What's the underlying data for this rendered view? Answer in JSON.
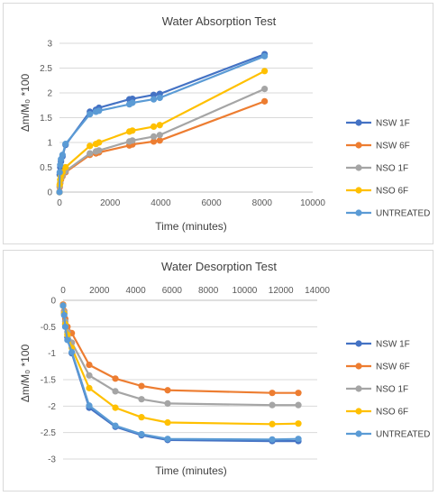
{
  "chart_data": [
    {
      "type": "line",
      "title": "Water Absorption Test",
      "xlabel": "Time (minutes)",
      "ylabel": "Δm/M₀ *100",
      "xlim": [
        0,
        10000
      ],
      "ylim": [
        0,
        3
      ],
      "xticks": [
        0,
        2000,
        4000,
        6000,
        8000,
        10000
      ],
      "yticks": [
        0,
        0.5,
        1,
        1.5,
        2,
        2.5,
        3
      ],
      "xtick_labels": [
        "0",
        "2000",
        "4000",
        "6000",
        "8000",
        "10000"
      ],
      "ytick_labels": [
        "0",
        "0.5",
        "1",
        "1.5",
        "2",
        "2.5",
        "3"
      ],
      "grid": "horizontal",
      "legend_position": "right",
      "series": [
        {
          "name": "NSW 1F",
          "color": "#4472c4",
          "x": [
            0,
            10,
            30,
            60,
            120,
            240,
            1200,
            1440,
            1560,
            2760,
            2880,
            3720,
            3960,
            8100
          ],
          "y": [
            0,
            0.35,
            0.5,
            0.62,
            0.72,
            0.95,
            1.62,
            1.66,
            1.7,
            1.87,
            1.88,
            1.96,
            1.98,
            2.78
          ]
        },
        {
          "name": "NSW 6F",
          "color": "#ed7d31",
          "x": [
            0,
            10,
            30,
            60,
            120,
            240,
            1200,
            1440,
            1560,
            2760,
            2880,
            3720,
            3960,
            8100
          ],
          "y": [
            0,
            0.1,
            0.18,
            0.25,
            0.32,
            0.4,
            0.75,
            0.78,
            0.8,
            0.94,
            0.96,
            1.02,
            1.04,
            1.83
          ]
        },
        {
          "name": "NSO 1F",
          "color": "#a5a5a5",
          "x": [
            0,
            10,
            30,
            60,
            120,
            240,
            1200,
            1440,
            1560,
            2760,
            2880,
            3720,
            3960,
            8100
          ],
          "y": [
            0,
            0.12,
            0.2,
            0.28,
            0.34,
            0.42,
            0.78,
            0.82,
            0.84,
            1.02,
            1.04,
            1.12,
            1.15,
            2.08
          ]
        },
        {
          "name": "NSO 6F",
          "color": "#ffc000",
          "x": [
            0,
            10,
            30,
            60,
            120,
            240,
            1200,
            1440,
            1560,
            2760,
            2880,
            3720,
            3960,
            8100
          ],
          "y": [
            0,
            0.15,
            0.25,
            0.33,
            0.4,
            0.5,
            0.93,
            0.97,
            1.0,
            1.22,
            1.24,
            1.32,
            1.35,
            2.44
          ]
        },
        {
          "name": "UNTREATED",
          "color": "#5b9bd5",
          "x": [
            0,
            10,
            30,
            60,
            120,
            240,
            1200,
            1440,
            1560,
            2760,
            2880,
            3720,
            3960,
            8100
          ],
          "y": [
            0,
            0.4,
            0.55,
            0.66,
            0.75,
            0.97,
            1.57,
            1.62,
            1.64,
            1.77,
            1.8,
            1.87,
            1.9,
            2.74
          ]
        }
      ]
    },
    {
      "type": "line",
      "title": "Water Desorption Test",
      "xlabel": "Time (minutes)",
      "ylabel": "Δm/M₀ *100",
      "xlim": [
        0,
        14000
      ],
      "ylim": [
        -3,
        0
      ],
      "xticks": [
        0,
        2000,
        4000,
        6000,
        8000,
        10000,
        12000,
        14000
      ],
      "yticks": [
        0,
        -0.5,
        -1,
        -1.5,
        -2,
        -2.5,
        -3
      ],
      "xtick_labels": [
        "0",
        "2000",
        "4000",
        "6000",
        "8000",
        "10000",
        "12000",
        "14000"
      ],
      "ytick_labels": [
        "0",
        "-0.5",
        "-1",
        "-1.5",
        "-2",
        "-2.5",
        "-3"
      ],
      "xaxis_position": "top",
      "grid": "horizontal",
      "legend_position": "right",
      "series": [
        {
          "name": "NSW 1F",
          "color": "#4472c4",
          "x": [
            0,
            60,
            120,
            240,
            480,
            1440,
            2880,
            4320,
            5760,
            11520,
            12960
          ],
          "y": [
            -0.1,
            -0.25,
            -0.45,
            -0.7,
            -1.0,
            -2.03,
            -2.39,
            -2.55,
            -2.64,
            -2.66,
            -2.66
          ]
        },
        {
          "name": "NSW 6F",
          "color": "#ed7d31",
          "x": [
            0,
            60,
            120,
            240,
            480,
            1440,
            2880,
            4320,
            5760,
            11520,
            12960
          ],
          "y": [
            -0.08,
            -0.2,
            -0.35,
            -0.5,
            -0.62,
            -1.22,
            -1.48,
            -1.62,
            -1.7,
            -1.75,
            -1.75
          ]
        },
        {
          "name": "NSO 1F",
          "color": "#a5a5a5",
          "x": [
            0,
            60,
            120,
            240,
            480,
            1440,
            2880,
            4320,
            5760,
            11520,
            12960
          ],
          "y": [
            -0.1,
            -0.22,
            -0.4,
            -0.6,
            -0.8,
            -1.42,
            -1.72,
            -1.87,
            -1.95,
            -1.98,
            -1.98
          ]
        },
        {
          "name": "NSO 6F",
          "color": "#ffc000",
          "x": [
            0,
            60,
            120,
            240,
            480,
            1440,
            2880,
            4320,
            5760,
            11520,
            12960
          ],
          "y": [
            -0.1,
            -0.25,
            -0.45,
            -0.65,
            -0.9,
            -1.66,
            -2.03,
            -2.21,
            -2.31,
            -2.34,
            -2.33
          ]
        },
        {
          "name": "UNTREATED",
          "color": "#5b9bd5",
          "x": [
            0,
            60,
            120,
            240,
            480,
            1440,
            2880,
            4320,
            5760,
            11520,
            12960
          ],
          "y": [
            -0.1,
            -0.28,
            -0.5,
            -0.75,
            -0.98,
            -1.99,
            -2.37,
            -2.53,
            -2.62,
            -2.63,
            -2.62
          ]
        }
      ]
    }
  ]
}
